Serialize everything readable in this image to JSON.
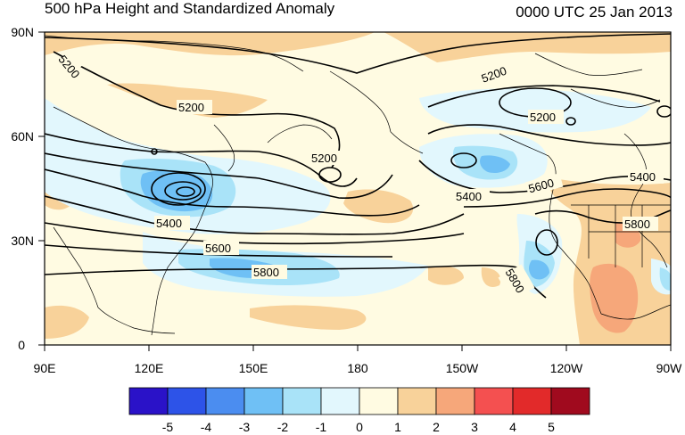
{
  "header": {
    "title": "500 hPa Height and Standardized Anomaly",
    "timestamp": "0000 UTC 25 Jan 2013"
  },
  "axes": {
    "lat_labels": [
      "90N",
      "60N",
      "30N",
      "0"
    ],
    "lon_labels": [
      "90E",
      "120E",
      "150E",
      "180",
      "150W",
      "120W",
      "90W"
    ]
  },
  "contour_labels": [
    "5200",
    "5200",
    "5200",
    "5200",
    "5200",
    "5400",
    "5400",
    "5600",
    "5600",
    "5800",
    "5800",
    "5400",
    "5800"
  ],
  "colorbar": {
    "labels": [
      "-5",
      "-4",
      "-3",
      "-2",
      "-1",
      "0",
      "1",
      "2",
      "3",
      "4",
      "5"
    ],
    "colors": [
      "#2a12c8",
      "#2d53e8",
      "#4b8df0",
      "#6fc0f5",
      "#a9e3f8",
      "#e2f7fd",
      "#fffbe2",
      "#f8d29a",
      "#f6a77a",
      "#f45050",
      "#e22a2a",
      "#a00a1e"
    ]
  }
}
